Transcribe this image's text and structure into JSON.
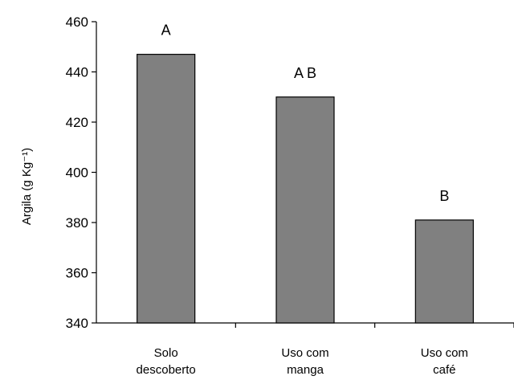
{
  "chart_data": {
    "type": "bar",
    "categories": [
      [
        "Solo",
        "descoberto"
      ],
      [
        "Uso com",
        "manga"
      ],
      [
        "Uso com",
        "café"
      ]
    ],
    "values": [
      447,
      430,
      381
    ],
    "significance_letters": [
      "A",
      "A B",
      "B"
    ],
    "y_ticks": [
      "460",
      "440",
      "420",
      "400",
      "380",
      "360",
      "340"
    ],
    "ylim": [
      340,
      460
    ],
    "ylabel": "Argila (g Kg⁻¹)",
    "xlabel": "",
    "title": "",
    "grid": false,
    "legend": "none",
    "colors": {
      "bar_fill": "#808080",
      "bar_stroke": "#000000",
      "axis": "#000000"
    }
  }
}
